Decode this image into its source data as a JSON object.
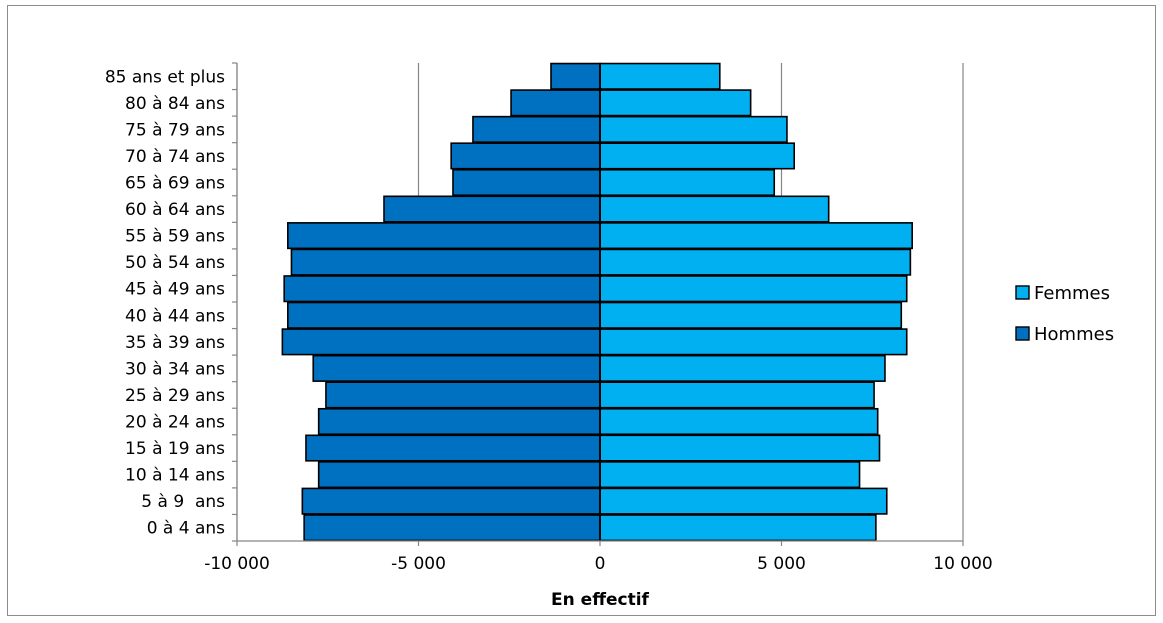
{
  "chart_data": {
    "type": "bar",
    "orientation": "horizontal",
    "title": "",
    "xlabel": "En effectif",
    "ylabel": "",
    "xlim": [
      -10000,
      10000
    ],
    "x_ticks": [
      -10000,
      -5000,
      0,
      5000,
      10000
    ],
    "x_tick_labels": [
      "-10 000",
      "-5 000",
      "0",
      "5 000",
      "10 000"
    ],
    "grid": "vertical",
    "legend_position": "right",
    "categories": [
      "0 à 4 ans",
      "5 à 9  ans",
      "10 à 14 ans",
      "15 à 19 ans",
      "20 à 24 ans",
      "25 à 29 ans",
      "30 à 34 ans",
      "35 à 39 ans",
      "40 à 44 ans",
      "45 à 49 ans",
      "50 à 54 ans",
      "55 à 59 ans",
      "60 à 64 ans",
      "65 à 69 ans",
      "70 à 74 ans",
      "75 à 79 ans",
      "80 à 84 ans",
      "85 ans et plus"
    ],
    "series": [
      {
        "name": "Femmes",
        "color": "#00b0f0",
        "values": [
          7600,
          7900,
          7150,
          7700,
          7650,
          7550,
          7850,
          8450,
          8300,
          8450,
          8550,
          8600,
          6300,
          4800,
          5350,
          5150,
          4150,
          3300
        ]
      },
      {
        "name": "Hommes",
        "color": "#0070c0",
        "values": [
          -8150,
          -8200,
          -7750,
          -8100,
          -7750,
          -7550,
          -7900,
          -8750,
          -8600,
          -8700,
          -8500,
          -8600,
          -5950,
          -4050,
          -4100,
          -3500,
          -2450,
          -1350
        ]
      }
    ]
  }
}
